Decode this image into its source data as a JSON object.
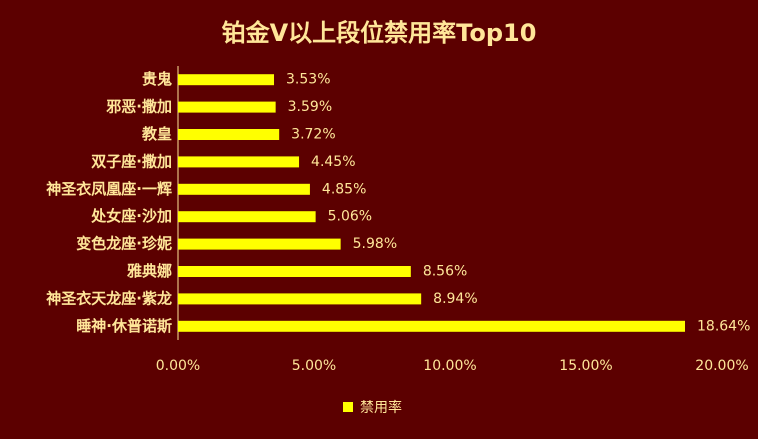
{
  "chart_data": {
    "type": "bar",
    "orientation": "horizontal",
    "title": "铂金V以上段位禁用率Top10",
    "categories": [
      "贵鬼",
      "邪恶·撒加",
      "教皇",
      "双子座·撒加",
      "神圣衣凤凰座·一辉",
      "处女座·沙加",
      "变色龙座·珍妮",
      "雅典娜",
      "神圣衣天龙座·紫龙",
      "睡神·休普诺斯"
    ],
    "series": [
      {
        "name": "禁用率",
        "color": "#ffff00",
        "values": [
          3.53,
          3.59,
          3.72,
          4.45,
          4.85,
          5.06,
          5.98,
          8.56,
          8.94,
          18.64
        ],
        "value_labels": [
          "3.53%",
          "3.59%",
          "3.72%",
          "4.45%",
          "4.85%",
          "5.06%",
          "5.98%",
          "8.56%",
          "8.94%",
          "18.64%"
        ]
      }
    ],
    "xlim": [
      0,
      20
    ],
    "xticks": [
      {
        "value": 0,
        "label": "0.00%"
      },
      {
        "value": 5,
        "label": "5.00%"
      },
      {
        "value": 10,
        "label": "10.00%"
      },
      {
        "value": 15,
        "label": "15.00%"
      },
      {
        "value": 20,
        "label": "20.00%"
      }
    ],
    "grid": false,
    "legend": "bottom"
  }
}
